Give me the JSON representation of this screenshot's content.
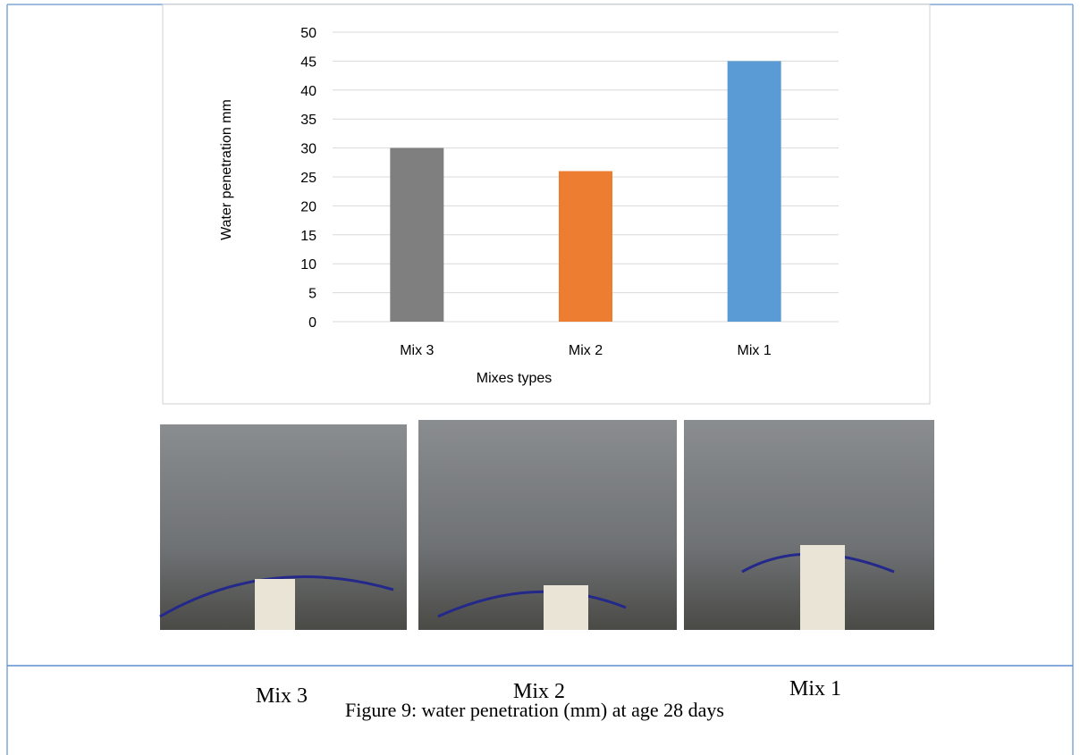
{
  "chart_data": {
    "type": "bar",
    "x_label": "Mixes types",
    "y_label": "Water  penetration  mm",
    "categories": [
      "Mix 3",
      "Mix 2",
      "Mix 1"
    ],
    "values": [
      30,
      26,
      45
    ],
    "colors": [
      "#7f7f7f",
      "#ed7d31",
      "#5b9bd5"
    ],
    "ylim": [
      0,
      50
    ],
    "yticks": [
      0,
      5,
      10,
      15,
      20,
      25,
      30,
      35,
      40,
      45,
      50
    ],
    "grid": true
  },
  "photos": [
    {
      "caption": "Mix 3"
    },
    {
      "caption": "Mix 2"
    },
    {
      "caption": "Mix 1"
    }
  ],
  "caption": "Figure 9: water penetration (mm) at age 28 days"
}
